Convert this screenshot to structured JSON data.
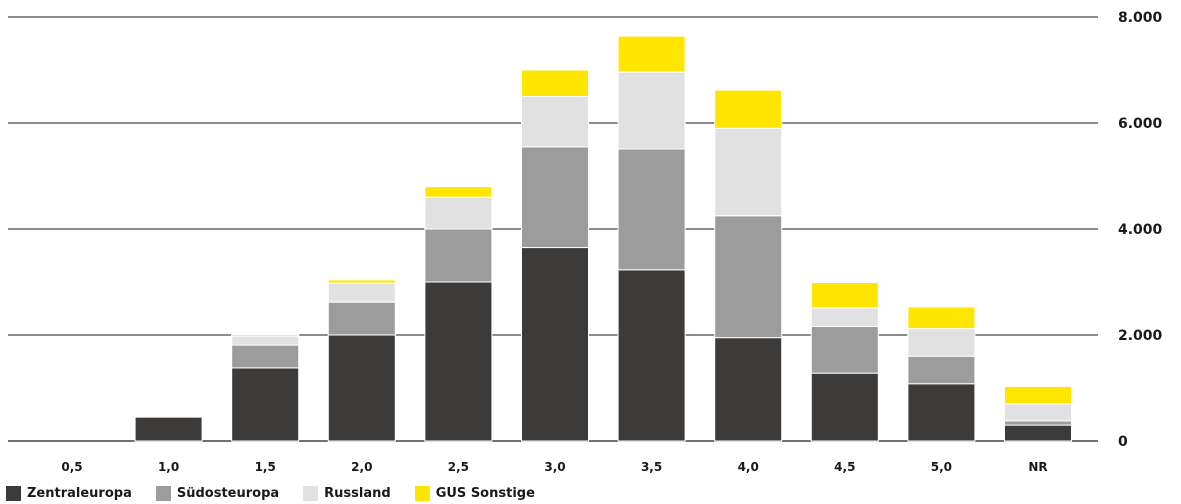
{
  "chart_data": {
    "type": "bar",
    "stacked": true,
    "categories": [
      "0,5",
      "1,0",
      "1,5",
      "2,0",
      "2,5",
      "3,0",
      "3,5",
      "4,0",
      "4,5",
      "5,0",
      "NR"
    ],
    "series": [
      {
        "name": "Zentraleuropa",
        "color": "#3c3b39",
        "values": [
          0,
          450,
          1380,
          2000,
          3000,
          3650,
          3230,
          1950,
          1280,
          1080,
          300
        ]
      },
      {
        "name": "Südosteuropa",
        "color": "#9c9c9c",
        "values": [
          0,
          0,
          430,
          620,
          1000,
          1900,
          2280,
          2300,
          880,
          520,
          80
        ]
      },
      {
        "name": "Russland",
        "color": "#e1e1e1",
        "values": [
          0,
          0,
          170,
          360,
          600,
          950,
          1450,
          1650,
          350,
          520,
          320
        ]
      },
      {
        "name": "GUS Sonstige",
        "color": "#ffe600",
        "values": [
          0,
          0,
          30,
          60,
          200,
          500,
          680,
          720,
          480,
          410,
          330
        ]
      }
    ],
    "y_ticks": [
      "0",
      "2.000",
      "4.000",
      "6.000",
      "8.000"
    ],
    "y_tick_values": [
      0,
      2000,
      4000,
      6000,
      8000
    ],
    "ylim": [
      0,
      8000
    ],
    "y_axis_side": "right",
    "grid": true,
    "legend_position": "bottom-left",
    "title": "",
    "xlabel": "",
    "ylabel": ""
  }
}
